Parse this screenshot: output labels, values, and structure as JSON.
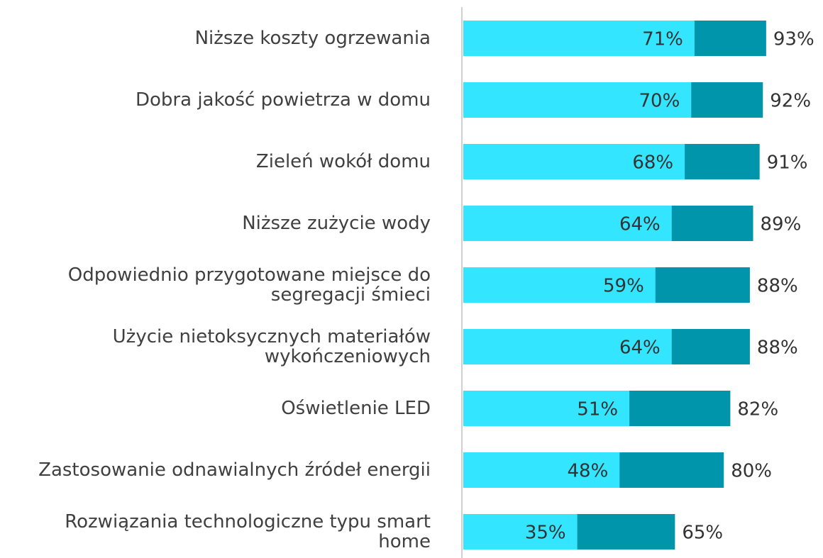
{
  "chart_data": {
    "type": "bar",
    "orientation": "horizontal",
    "categories": [
      "Niższe koszty ogrzewania",
      "Dobra jakość powietrza w domu",
      "Zieleń wokół domu",
      "Niższe zużycie wody",
      "Odpowiednio przygotowane miejsce do\nsegregacji śmieci",
      "Użycie nietoksycznych materiałów\nwykończeniowych",
      "Oświetlenie LED",
      "Zastosowanie odnawialnych źródeł energii",
      "Rozwiązania technologiczne typu smart\nhome"
    ],
    "series": [
      {
        "color": "#0095aa",
        "values": [
          93,
          92,
          91,
          89,
          88,
          88,
          82,
          80,
          65
        ],
        "value_labels": [
          "93%",
          "92%",
          "91%",
          "89%",
          "88%",
          "88%",
          "82%",
          "80%",
          "65%"
        ]
      },
      {
        "color": "#33e5ff",
        "values": [
          71,
          70,
          68,
          64,
          59,
          64,
          51,
          48,
          35
        ],
        "value_labels": [
          "71%",
          "70%",
          "68%",
          "64%",
          "59%",
          "64%",
          "51%",
          "48%",
          "35%"
        ]
      }
    ],
    "xlim": [
      0,
      100
    ]
  }
}
